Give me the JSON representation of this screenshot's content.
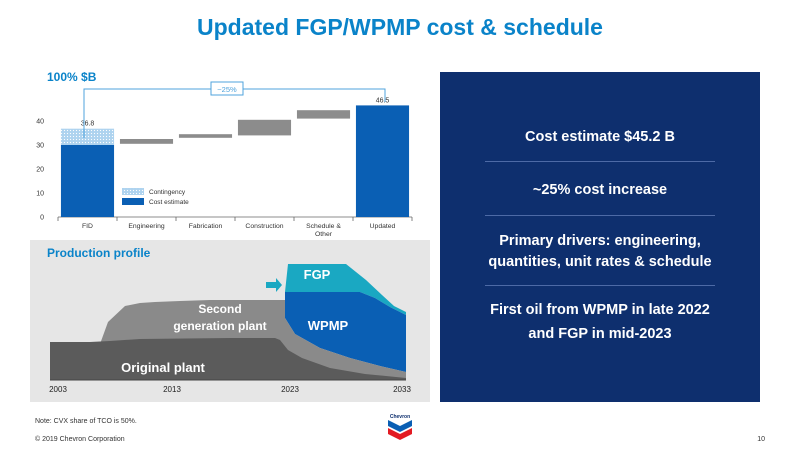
{
  "title": "Updated FGP/WPMP cost & schedule",
  "waterfall": {
    "heading": "100% $B",
    "pct_annotation": "~25%",
    "legend": {
      "contingency": "Contingency",
      "cost_estimate": "Cost estimate"
    },
    "colors": {
      "bar": "#0a5fb4",
      "contingency": "#aed3ef",
      "step": "#8c8c8c",
      "bracket": "#4fa3dc"
    }
  },
  "chart_data": {
    "type": "bar",
    "categories": [
      "FID",
      "Engineering",
      "Fabrication",
      "Construction",
      "Schedule & Other",
      "Updated"
    ],
    "category_lines": [
      [
        "FID"
      ],
      [
        "Engineering"
      ],
      [
        "Fabrication"
      ],
      [
        "Construction"
      ],
      [
        "Schedule &",
        "Other"
      ],
      [
        "Updated"
      ]
    ],
    "totals": {
      "FID": 36.8,
      "Updated": 46.5
    },
    "fid_cost_estimate": 30,
    "steps": [
      {
        "category": "Engineering",
        "from": 30.5,
        "to": 32.5
      },
      {
        "category": "Fabrication",
        "from": 33,
        "to": 34.5
      },
      {
        "category": "Construction",
        "from": 34,
        "to": 40.5
      },
      {
        "category": "Schedule & Other",
        "from": 41,
        "to": 44.5
      }
    ],
    "data_labels": [
      "36.8",
      "46.5"
    ],
    "yticks": [
      0,
      10,
      20,
      30,
      40
    ],
    "ylim": [
      0,
      45
    ]
  },
  "production": {
    "heading": "Production profile",
    "labels": {
      "fgp": "FGP",
      "wpmp": "WPMP",
      "second_line1": "Second",
      "second_line2": "generation plant",
      "original": "Original plant"
    },
    "years": [
      "2003",
      "2013",
      "2023",
      "2033"
    ],
    "colors": {
      "original": "#5b5b5b",
      "second": "#8a8a8a",
      "wpmp": "#0a5fb4",
      "fgp": "#1aa8c2"
    }
  },
  "side_panel": {
    "item1": "Cost estimate $45.2 B",
    "item2": "~25% cost increase",
    "item3_line1": "Primary drivers: engineering,",
    "item3_line2": "quantities, unit rates & schedule",
    "item4_line1": "First oil from WPMP in late 2022",
    "item4_line2": "and FGP in mid-2023"
  },
  "footer": {
    "note": "Note: CVX share of TCO is 50%.",
    "copyright": "© 2019 Chevron Corporation",
    "page_number": "10",
    "logo_text": "Chevron"
  }
}
